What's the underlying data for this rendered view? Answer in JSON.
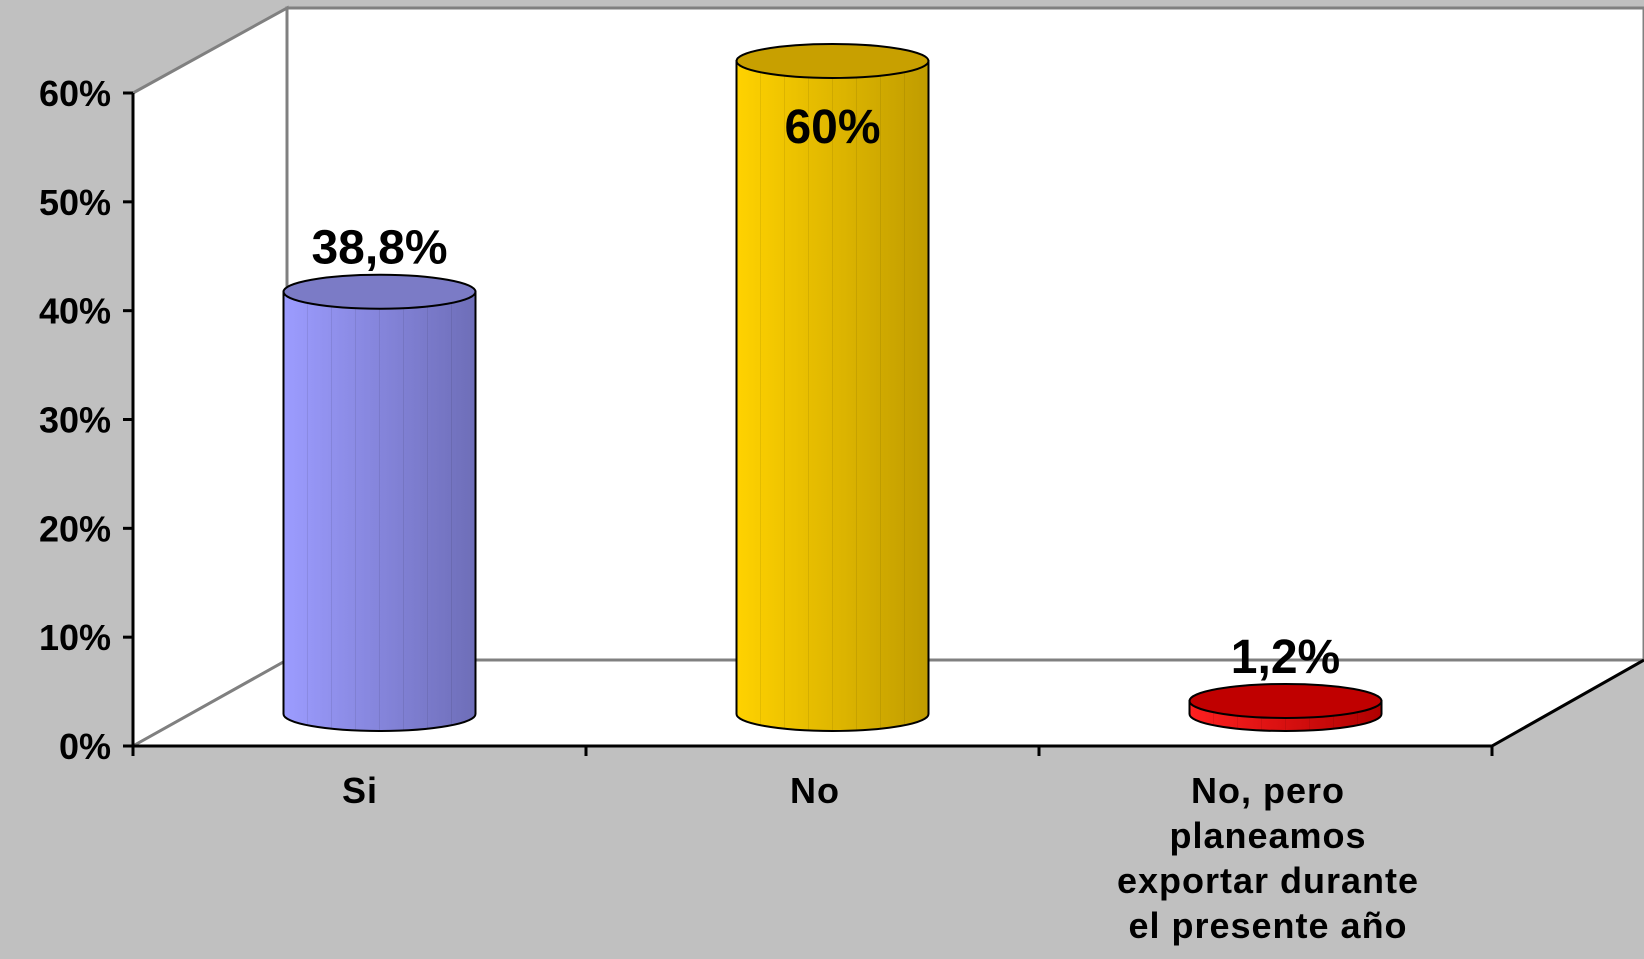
{
  "chart_data": {
    "type": "bar",
    "style": "3d-cylinder",
    "categories": [
      "Si",
      "No",
      "No, pero planeamos exportar durante el presente año"
    ],
    "category_lines": [
      [
        "Si"
      ],
      [
        "No"
      ],
      [
        "No, pero",
        "planeamos",
        "exportar durante",
        "el presente año"
      ]
    ],
    "values": [
      38.8,
      60,
      1.2
    ],
    "data_labels": [
      "38,8%",
      "60%",
      "1,2%"
    ],
    "yticks": [
      "0%",
      "10%",
      "20%",
      "30%",
      "40%",
      "50%",
      "60%"
    ],
    "ylim": [
      0,
      60
    ],
    "grid": false,
    "legend": "none",
    "colors": {
      "background": "#c0c0c0",
      "wall": "#ffffff",
      "bars": [
        {
          "light": "#9c9cff",
          "dark": "#6e6eb8",
          "top": "#7b7bc6"
        },
        {
          "light": "#ffd200",
          "dark": "#c09c00",
          "top": "#c8a000"
        },
        {
          "light": "#ff2020",
          "dark": "#b00000",
          "top": "#c00000"
        }
      ]
    }
  }
}
